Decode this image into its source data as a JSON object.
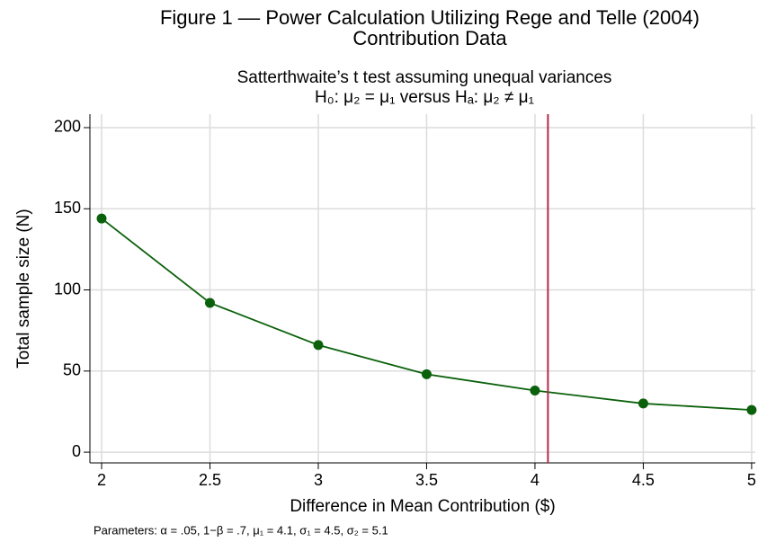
{
  "chart_data": {
    "type": "line",
    "title": [
      "Figure 1 –– Power Calculation Utilizing Rege and Telle (2004)",
      "Contribution Data"
    ],
    "subtitle": [
      "Satterthwaite’s t test assuming unequal variances",
      "H₀: μ₂ = μ₁  versus  Hₐ: μ₂ ≠ μ₁"
    ],
    "x_label": "Difference in Mean Contribution ($)",
    "y_label": "Total sample size (N)",
    "note": "Parameters: α = .05, 1−β = .7, μ₁ = 4.1, σ₁ = 4.5, σ₂ = 5.1",
    "x": [
      2,
      2.5,
      3,
      3.5,
      4,
      4.5,
      5
    ],
    "series": [
      {
        "color": "#0b610b",
        "values": [
          144,
          92,
          66,
          48,
          38,
          30,
          26
        ]
      }
    ],
    "xlim": [
      1.946,
      5.017
    ],
    "ylim": [
      -6.6,
      208.3
    ],
    "xticks": [
      2,
      2.5,
      3,
      3.5,
      4,
      4.5,
      5
    ],
    "yticks": [
      0,
      50,
      100,
      150,
      200
    ],
    "grid": true,
    "xline": {
      "value": 4.06,
      "color": "#b5294e"
    }
  }
}
